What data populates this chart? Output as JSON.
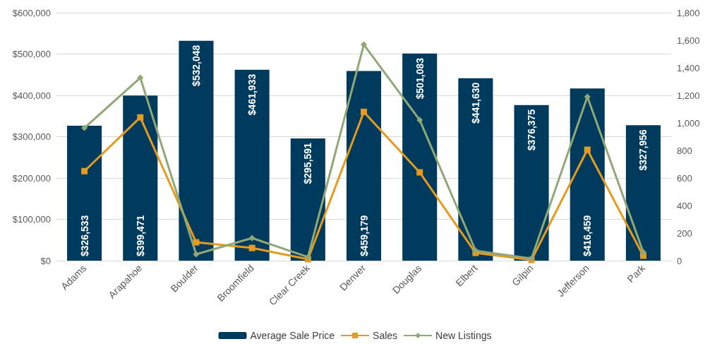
{
  "chart_data": {
    "type": "bar",
    "categories": [
      "Adams",
      "Arapahoe",
      "Boulder",
      "Broomfield",
      "Clear Creek",
      "Denver",
      "Douglas",
      "Elbert",
      "Gilpin",
      "Jefferson",
      "Park"
    ],
    "series": [
      {
        "name": "Average Sale Price",
        "color": "#003a5d",
        "values": [
          326533,
          399471,
          532048,
          461933,
          295591,
          459179,
          501083,
          441630,
          376375,
          416459,
          327956
        ],
        "value_labels": [
          "$326,533",
          "$399,471",
          "$532,048",
          "$461,933",
          "$295,591",
          "$459,179",
          "$501,083",
          "$441,630",
          "$376,375",
          "$416,459",
          "$327,956"
        ]
      },
      {
        "name": "Sales",
        "type": "line",
        "axis": "y2",
        "marker": "square",
        "color": "#e49b1f",
        "values": [
          650,
          1040,
          133,
          92,
          10,
          1080,
          641,
          56,
          5,
          805,
          36
        ]
      },
      {
        "name": "New Listings",
        "type": "line",
        "axis": "y2",
        "marker": "diamond",
        "color": "#8fa876",
        "values": [
          964,
          1328,
          46,
          164,
          26,
          1569,
          1021,
          72,
          15,
          1190,
          62
        ]
      }
    ],
    "ylim": [
      0,
      600000
    ],
    "yticks": [
      {
        "value": 0,
        "label": "$0"
      },
      {
        "value": 100000,
        "label": "$100,000"
      },
      {
        "value": 200000,
        "label": "$200,000"
      },
      {
        "value": 300000,
        "label": "$300,000"
      },
      {
        "value": 400000,
        "label": "$400,000"
      },
      {
        "value": 500000,
        "label": "$500,000"
      },
      {
        "value": 600000,
        "label": "$600,000"
      }
    ],
    "y2lim": [
      0,
      1800
    ],
    "y2ticks": [
      0,
      {
        "value": 200,
        "label": "200"
      },
      {
        "value": 400,
        "label": "400"
      },
      {
        "value": 600,
        "label": "600"
      },
      {
        "value": 800,
        "label": "800"
      },
      {
        "value": 1000,
        "label": "1,000"
      },
      {
        "value": 1200,
        "label": "1,200"
      },
      {
        "value": 1400,
        "label": "1,400"
      },
      {
        "value": 1600,
        "label": "1,600"
      },
      {
        "value": 1800,
        "label": "1,800"
      }
    ],
    "grid": "y",
    "legend": "bottom",
    "line_style": "solid"
  }
}
